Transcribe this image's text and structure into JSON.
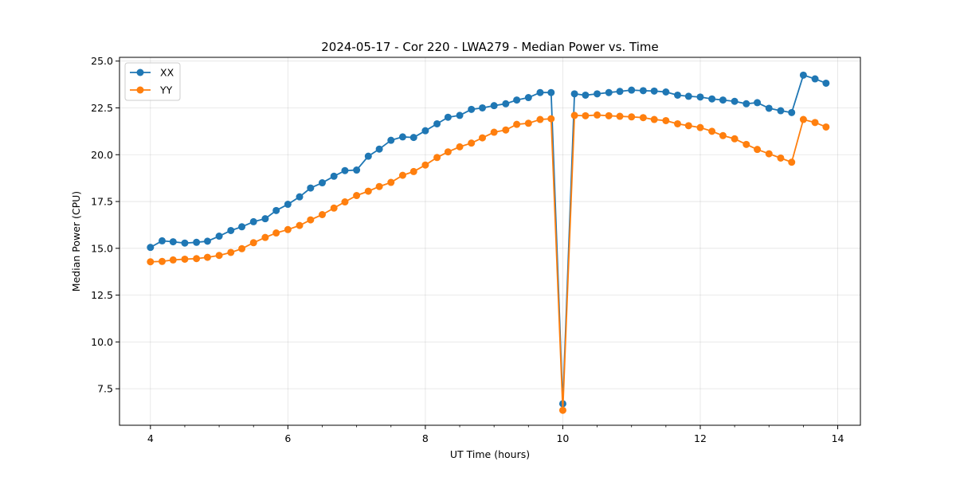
{
  "chart_data": {
    "type": "line",
    "title": "2024-05-17 - Cor 220 - LWA279 - Median Power vs. Time",
    "xlabel": "UT Time (hours)",
    "ylabel": "Median Power (CPU)",
    "xlim": [
      3.55,
      14.33
    ],
    "ylim": [
      5.55,
      25.2
    ],
    "xticks": [
      4,
      6,
      8,
      10,
      12,
      14
    ],
    "xtick_labels": [
      "4",
      "6",
      "8",
      "10",
      "12",
      "14"
    ],
    "yticks": [
      7.5,
      10.0,
      12.5,
      15.0,
      17.5,
      20.0,
      22.5,
      25.0
    ],
    "ytick_labels": [
      "7.5",
      "10.0",
      "12.5",
      "15.0",
      "17.5",
      "20.0",
      "22.5",
      "25.0"
    ],
    "grid": true,
    "legend_position": "top-left",
    "x": [
      4.0,
      4.17,
      4.33,
      4.5,
      4.67,
      4.83,
      5.0,
      5.17,
      5.33,
      5.5,
      5.67,
      5.83,
      6.0,
      6.17,
      6.33,
      6.5,
      6.67,
      6.83,
      7.0,
      7.17,
      7.33,
      7.5,
      7.67,
      7.83,
      8.0,
      8.17,
      8.33,
      8.5,
      8.67,
      8.83,
      9.0,
      9.17,
      9.33,
      9.5,
      9.67,
      9.83,
      10.0,
      10.17,
      10.33,
      10.5,
      10.67,
      10.83,
      11.0,
      11.17,
      11.33,
      11.5,
      11.67,
      11.83,
      12.0,
      12.17,
      12.33,
      12.5,
      12.67,
      12.83,
      13.0,
      13.17,
      13.33,
      13.5,
      13.67,
      13.83
    ],
    "series": [
      {
        "name": "XX",
        "color": "#1f77b4",
        "values": [
          15.05,
          15.4,
          15.35,
          15.28,
          15.32,
          15.38,
          15.65,
          15.95,
          16.15,
          16.42,
          16.58,
          17.02,
          17.35,
          17.75,
          18.22,
          18.5,
          18.85,
          19.15,
          19.18,
          19.92,
          20.3,
          20.77,
          20.95,
          20.92,
          21.28,
          21.65,
          22.0,
          22.1,
          22.42,
          22.5,
          22.62,
          22.72,
          22.92,
          23.05,
          23.32,
          23.32,
          6.7,
          23.25,
          23.18,
          23.25,
          23.32,
          23.38,
          23.45,
          23.42,
          23.4,
          23.35,
          23.18,
          23.12,
          23.08,
          22.98,
          22.92,
          22.85,
          22.72,
          22.78,
          22.48,
          22.35,
          22.25,
          24.25,
          24.05,
          23.82
        ]
      },
      {
        "name": "YY",
        "color": "#ff7f0e",
        "values": [
          14.28,
          14.3,
          14.38,
          14.42,
          14.45,
          14.52,
          14.62,
          14.78,
          14.98,
          15.3,
          15.58,
          15.82,
          16.0,
          16.22,
          16.52,
          16.8,
          17.15,
          17.48,
          17.82,
          18.05,
          18.3,
          18.52,
          18.9,
          19.1,
          19.45,
          19.85,
          20.15,
          20.42,
          20.62,
          20.9,
          21.2,
          21.32,
          21.62,
          21.68,
          21.88,
          21.92,
          6.35,
          22.1,
          22.08,
          22.12,
          22.08,
          22.05,
          22.02,
          21.98,
          21.88,
          21.82,
          21.65,
          21.55,
          21.45,
          21.25,
          21.02,
          20.85,
          20.55,
          20.28,
          20.05,
          19.82,
          19.6,
          21.88,
          21.72,
          21.48
        ]
      }
    ]
  }
}
